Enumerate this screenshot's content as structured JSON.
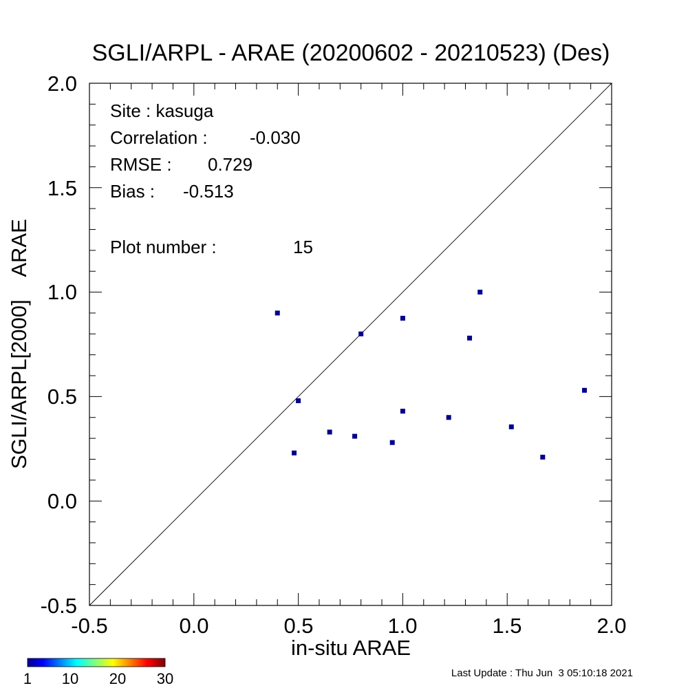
{
  "chart_data": {
    "type": "scatter",
    "title": "SGLI/ARPL - ARAE (20200602 - 20210523) (Des)",
    "xlabel": "in-situ ARAE",
    "ylabel": "SGLI/ARPL[2000]    ARAE",
    "xlim": [
      -0.5,
      2.0
    ],
    "ylim": [
      -0.5,
      2.0
    ],
    "xticks": [
      "-0.5",
      "0.0",
      "0.5",
      "1.0",
      "1.5",
      "2.0"
    ],
    "yticks": [
      "-0.5",
      "0.0",
      "0.5",
      "1.0",
      "1.5",
      "2.0"
    ],
    "one_to_one_line": true,
    "point_color": "#00008b",
    "points": [
      {
        "x": 0.4,
        "y": 0.9
      },
      {
        "x": 0.48,
        "y": 0.23
      },
      {
        "x": 0.5,
        "y": 0.48
      },
      {
        "x": 0.65,
        "y": 0.33
      },
      {
        "x": 0.77,
        "y": 0.31
      },
      {
        "x": 0.8,
        "y": 0.8
      },
      {
        "x": 0.95,
        "y": 0.28
      },
      {
        "x": 1.0,
        "y": 0.875
      },
      {
        "x": 1.0,
        "y": 0.43
      },
      {
        "x": 1.22,
        "y": 0.4
      },
      {
        "x": 1.32,
        "y": 0.78
      },
      {
        "x": 1.37,
        "y": 1.0
      },
      {
        "x": 1.52,
        "y": 0.355
      },
      {
        "x": 1.67,
        "y": 0.21
      },
      {
        "x": 1.87,
        "y": 0.53
      }
    ],
    "stats": {
      "site_label": "Site : kasuga",
      "correlation_label": "Correlation :",
      "correlation_value": "-0.030",
      "rmse_label": "RMSE :",
      "rmse_value": "0.729",
      "bias_label": "Bias :",
      "bias_value": "-0.513",
      "plot_number_label": "Plot number :",
      "plot_number_value": "15"
    },
    "colorbar": {
      "ticks": [
        "1",
        "10",
        "20",
        "30"
      ],
      "colormap": "jet"
    }
  },
  "footer": {
    "last_update": "Last Update : Thu Jun  3 05:10:18 2021"
  }
}
